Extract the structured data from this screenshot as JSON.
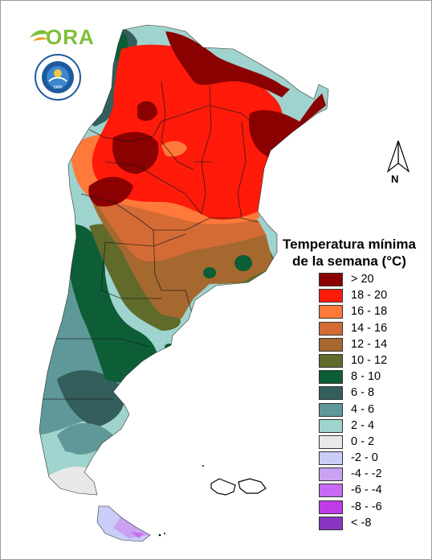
{
  "logo": {
    "text": "ORA",
    "icon": "ora-sun-leaf-logo"
  },
  "seal": {
    "icon": "meteorological-service-seal",
    "text": "SERVICIO METEOROLÓGICO NACIONAL · ARGENTINA"
  },
  "north_arrow": {
    "letter": "N",
    "icon": "north-arrow-icon"
  },
  "legend": {
    "title_line1": "Temperatura mínima",
    "title_line2": "de la semana (°C)",
    "items": [
      {
        "label": "> 20",
        "color": "#8b0000"
      },
      {
        "label": "18 - 20",
        "color": "#ff1a0a"
      },
      {
        "label": "16 - 18",
        "color": "#ff7a3a"
      },
      {
        "label": "14 - 16",
        "color": "#d46b35"
      },
      {
        "label": "12 - 14",
        "color": "#a5682f"
      },
      {
        "label": "10 - 12",
        "color": "#5f6a2b"
      },
      {
        "label": "8 - 10",
        "color": "#0d5e36"
      },
      {
        "label": "6 - 8",
        "color": "#335e5c"
      },
      {
        "label": "4 - 6",
        "color": "#5f9898"
      },
      {
        "label": "2 - 4",
        "color": "#9fd3cd"
      },
      {
        "label": "0 - 2",
        "color": "#e8e8e8"
      },
      {
        "label": "-2 - 0",
        "color": "#c9cdf8"
      },
      {
        "label": "-4 - -2",
        "color": "#c9a2f2"
      },
      {
        "label": "-6 - -4",
        "color": "#c86bf4"
      },
      {
        "label": "-8 - -6",
        "color": "#c03ae8"
      },
      {
        "label": "< -8",
        "color": "#8a35c2"
      }
    ]
  },
  "map": {
    "region": "Argentina",
    "variable": "minimum temperature",
    "islands": "Islas Malvinas"
  }
}
